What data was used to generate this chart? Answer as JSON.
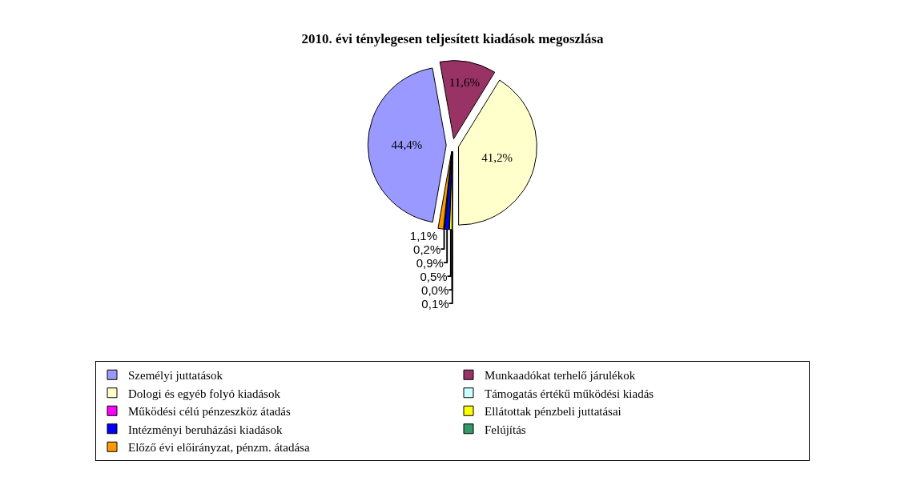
{
  "chart_data": {
    "type": "pie",
    "title": "2010. évi ténylegesen teljesített kiadások megoszlása",
    "categories": [
      "Személyi juttatások",
      "Munkaadókat terhelő járulékok",
      "Dologi és egyéb folyó kiadások",
      "Támogatás értékű működési kiadás",
      "Működési célú pénzeszköz átadás",
      "Ellátottak pénzbeli juttatásai",
      "Intézményi beruházási kiadások",
      "Felújítás",
      "Előző évi előirányzat, pénzm. átadása"
    ],
    "values": [
      44.4,
      11.6,
      41.2,
      0.1,
      0.0,
      0.5,
      0.9,
      0.2,
      1.1
    ],
    "value_labels": [
      "44,4%",
      "11,6%",
      "41,2%",
      "0,1%",
      "0,0%",
      "0,5%",
      "0,9%",
      "0,2%",
      "1,1%"
    ],
    "colors": [
      "#9999ff",
      "#993366",
      "#ffffcc",
      "#ccffff",
      "#ff00ff",
      "#ffff00",
      "#0000ff",
      "#339966",
      "#ff9900"
    ],
    "legend": "bottom"
  }
}
